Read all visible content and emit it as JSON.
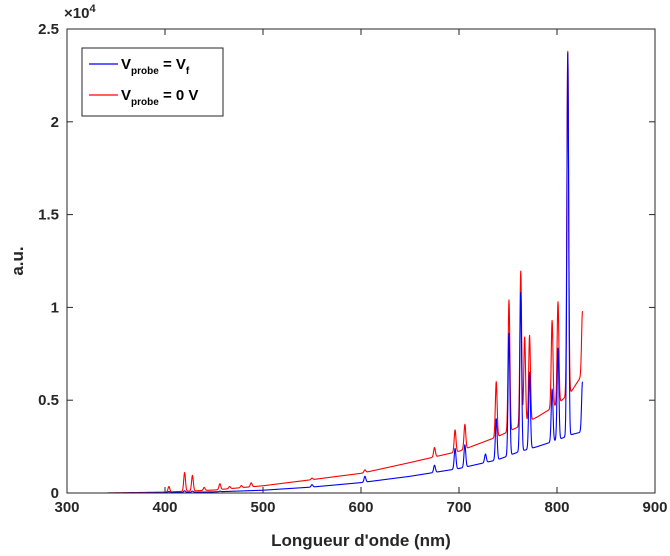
{
  "chart_data": {
    "type": "line",
    "xlabel": "Longueur d'onde (nm)",
    "ylabel": "a.u.",
    "xlim": [
      300,
      900
    ],
    "ylim": [
      0,
      25000
    ],
    "x_ticks": [
      300,
      400,
      500,
      600,
      700,
      800,
      900
    ],
    "x_tick_labels": [
      "300",
      "400",
      "500",
      "600",
      "700",
      "800",
      "900"
    ],
    "y_ticks": [
      0,
      5000,
      10000,
      15000,
      20000,
      25000
    ],
    "y_tick_labels": [
      "0",
      "0.5",
      "1",
      "1.5",
      "2",
      "2.5"
    ],
    "y_exponent": {
      "base": "×10",
      "power": "4"
    },
    "grid": false,
    "legend_position": "top-left",
    "legend": [
      {
        "main": "V",
        "sub": "probe",
        "eq": " = V",
        "sub2": "f"
      },
      {
        "main": "V",
        "sub": "probe",
        "eq": " = 0 V",
        "sub2": ""
      }
    ],
    "series": [
      {
        "color": "#0000ff",
        "baseline": [
          [
            340,
            0
          ],
          [
            400,
            20
          ],
          [
            450,
            60
          ],
          [
            500,
            150
          ],
          [
            550,
            320
          ],
          [
            600,
            560
          ],
          [
            650,
            900
          ],
          [
            700,
            1320
          ],
          [
            740,
            1800
          ],
          [
            760,
            2200
          ],
          [
            780,
            2500
          ],
          [
            800,
            2850
          ],
          [
            815,
            3150
          ],
          [
            826,
            3300
          ]
        ],
        "peaks": [
          [
            404,
            80
          ],
          [
            420,
            120
          ],
          [
            428,
            100
          ],
          [
            456,
            100
          ],
          [
            470,
            100
          ],
          [
            488,
            120
          ],
          [
            550,
            450
          ],
          [
            604,
            900
          ],
          [
            675,
            1500
          ],
          [
            696,
            2400
          ],
          [
            706,
            2600
          ],
          [
            727,
            2100
          ],
          [
            738,
            4000
          ],
          [
            751,
            8600
          ],
          [
            763,
            10800
          ],
          [
            772,
            6500
          ],
          [
            795,
            5600
          ],
          [
            801,
            7800
          ],
          [
            811,
            23700
          ],
          [
            826,
            6000
          ]
        ]
      },
      {
        "color": "#ff0000",
        "baseline": [
          [
            340,
            0
          ],
          [
            400,
            50
          ],
          [
            450,
            160
          ],
          [
            500,
            390
          ],
          [
            550,
            720
          ],
          [
            600,
            1060
          ],
          [
            650,
            1640
          ],
          [
            700,
            2250
          ],
          [
            740,
            3050
          ],
          [
            760,
            3550
          ],
          [
            780,
            4100
          ],
          [
            800,
            4750
          ],
          [
            815,
            5500
          ],
          [
            826,
            6400
          ]
        ],
        "peaks": [
          [
            404,
            350
          ],
          [
            420,
            1100
          ],
          [
            428,
            950
          ],
          [
            440,
            300
          ],
          [
            456,
            500
          ],
          [
            466,
            350
          ],
          [
            478,
            400
          ],
          [
            488,
            550
          ],
          [
            550,
            800
          ],
          [
            604,
            1250
          ],
          [
            675,
            2450
          ],
          [
            696,
            3400
          ],
          [
            706,
            3700
          ],
          [
            738,
            6000
          ],
          [
            751,
            10400
          ],
          [
            763,
            11950
          ],
          [
            767,
            8400
          ],
          [
            772,
            8500
          ],
          [
            795,
            9300
          ],
          [
            801,
            10300
          ],
          [
            811,
            23800
          ],
          [
            826,
            9800
          ]
        ]
      }
    ]
  }
}
